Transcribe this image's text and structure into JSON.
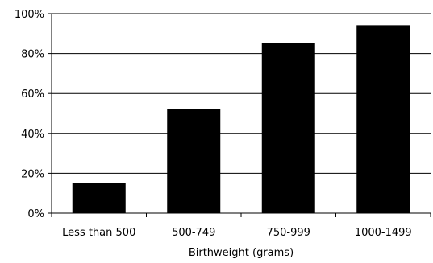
{
  "chart_data": {
    "type": "bar",
    "categories": [
      "Less than 500",
      "500-749",
      "750-999",
      "1000-1499"
    ],
    "values": [
      15,
      52,
      85,
      94
    ],
    "title": "",
    "xlabel": "Birthweight (grams)",
    "ylabel": "",
    "ylim": [
      0,
      100
    ],
    "yticks": [
      "0%",
      "20%",
      "40%",
      "60%",
      "80%",
      "100%"
    ],
    "grid": true,
    "bar_color": "#000000"
  }
}
